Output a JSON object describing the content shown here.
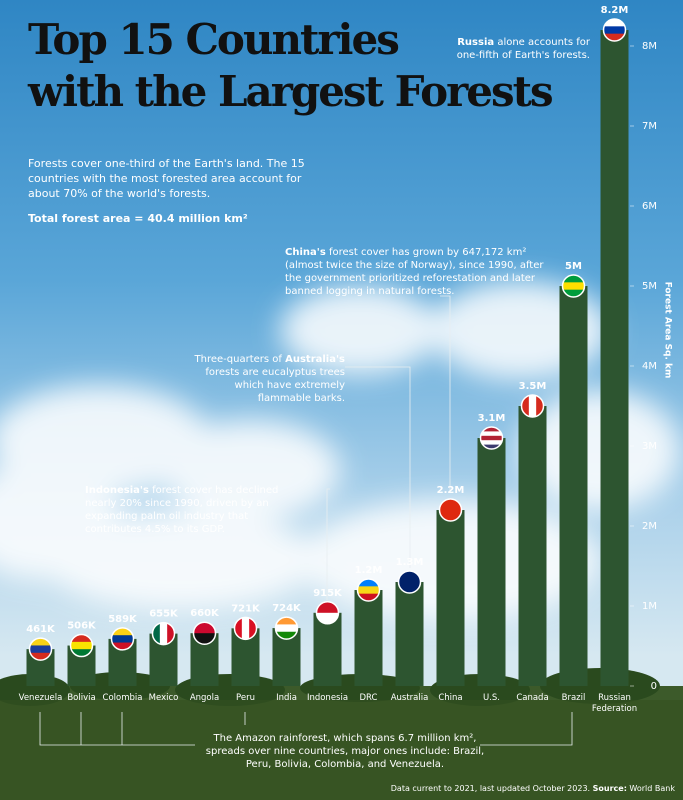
{
  "chart_data": {
    "type": "bar",
    "title_lines": [
      "Top 15 Countries",
      "with the Largest Forests"
    ],
    "subtitle": "Forests cover one-third of the Earth's land. The 15 countries with the most forested area account for about 70% of the world's forests.",
    "total": "Total forest area = 40.4 million km²",
    "y_axis_label": "Forest Area Sq. km",
    "categories": [
      "Venezuela",
      "Bolivia",
      "Colombia",
      "Mexico",
      "Angola",
      "Peru",
      "India",
      "Indonesia",
      "DRC",
      "Australia",
      "China",
      "U.S.",
      "Canada",
      "Brazil",
      "Russian Federation"
    ],
    "values": [
      461000,
      506000,
      589000,
      655000,
      660000,
      721000,
      724000,
      915000,
      1200000,
      1300000,
      2200000,
      3100000,
      3500000,
      5000000,
      8200000
    ],
    "value_labels": [
      "461K",
      "506K",
      "589K",
      "655K",
      "660K",
      "721K",
      "724K",
      "915K",
      "1.2M",
      "1.3M",
      "2.2M",
      "3.1M",
      "3.5M",
      "5M",
      "8.2M"
    ],
    "color": "#2d5530",
    "ylim": [
      0,
      8500000
    ],
    "yticks": [
      0,
      {
        "value": 1000000,
        "label": "1M"
      },
      {
        "value": 2000000,
        "label": "2M"
      },
      {
        "value": 3000000,
        "label": "3M"
      },
      {
        "value": 4000000,
        "label": "4M"
      },
      {
        "value": 5000000,
        "label": "5M"
      },
      {
        "value": 6000000,
        "label": "6M"
      },
      {
        "value": 7000000,
        "label": "7M"
      },
      {
        "value": 8000000,
        "label": "8M"
      }
    ],
    "annotations": [
      {
        "bold": "Russia",
        "text": " alone accounts for one-fifth of Earth's forests."
      },
      {
        "bold": "China's",
        "text": " forest cover has grown by 647,172 km² (almost twice the size of Norway), since 1990, after the government prioritized reforestation and later banned logging in natural forests."
      },
      {
        "text": "Three-quarters of ",
        "bold": "Australia's",
        "text2": " forests are eucalyptus trees which have extremely flammable barks."
      },
      {
        "bold": "Indonesia's",
        "text": " forest cover has declined nearly 20% since 1990, driven by an expanding palm oil industry that contributes 4.5% to its GDP."
      },
      {
        "text": "The Amazon rainforest, which spans 6.7 million km², spreads over nine countries, major ones include: Brazil, Peru, Bolivia, Colombia, and Venezuela."
      }
    ],
    "footer": {
      "text": "Data current to 2021, last updated October 2023. ",
      "bold": "Source:",
      "text2": " World Bank"
    }
  }
}
